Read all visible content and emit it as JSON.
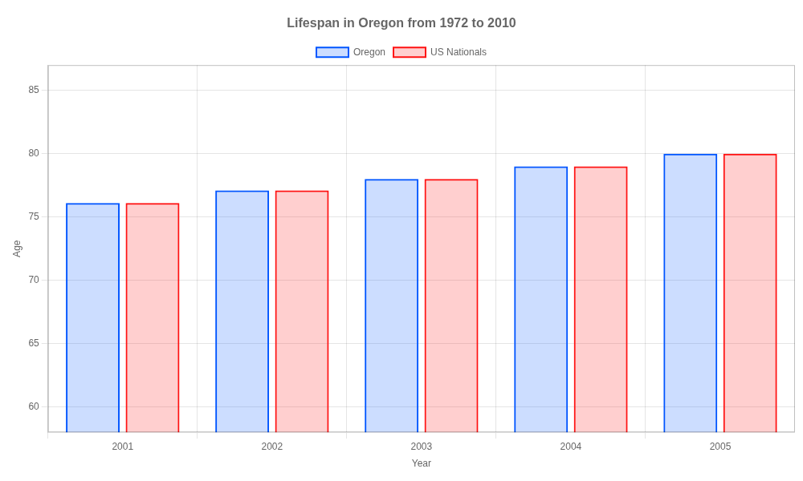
{
  "chart_data": {
    "type": "bar",
    "title": "Lifespan in Oregon from 1972 to 2010",
    "x_label": "Year",
    "y_label": "Age",
    "categories": [
      2001,
      2002,
      2003,
      2004,
      2005
    ],
    "series": [
      {
        "name": "Oregon",
        "color": "#0055ff",
        "values": [
          76.1,
          77.1,
          78.0,
          79.0,
          80.0
        ]
      },
      {
        "name": "US Nationals",
        "color": "#ff1111",
        "values": [
          76.1,
          77.1,
          78.0,
          79.0,
          80.0
        ]
      }
    ],
    "ylim": [
      58,
      87
    ],
    "yticks": [
      60,
      65,
      70,
      75,
      80,
      85
    ],
    "grid": true,
    "legend": "top"
  }
}
